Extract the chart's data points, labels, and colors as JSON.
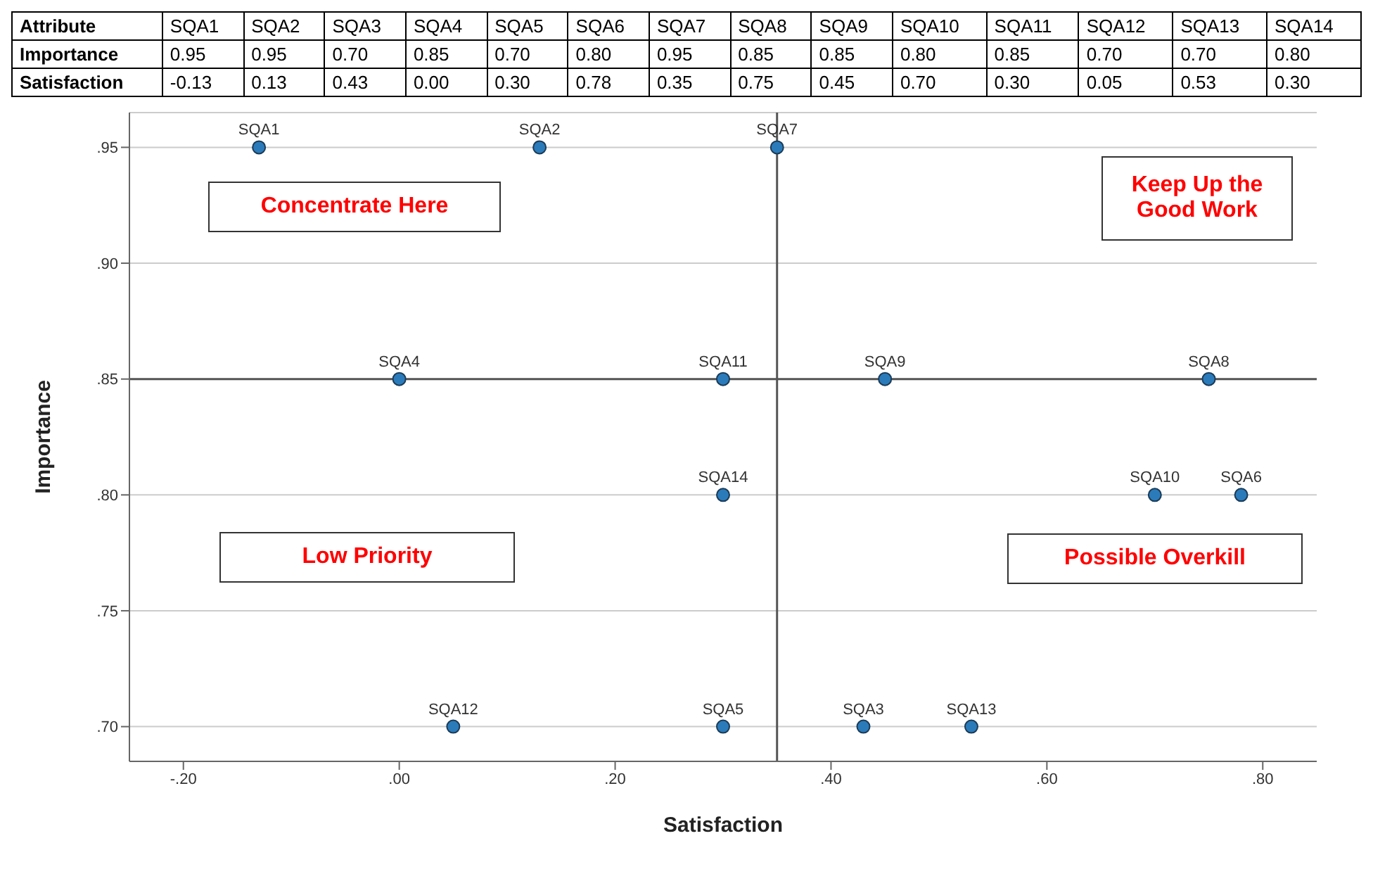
{
  "chart_data": [
    {
      "type": "heatmap",
      "ylabel": "Attribute",
      "data_labels": true,
      "categories": [
        "SQA1",
        "SQA2",
        "SQA3",
        "SQA4",
        "SQA5",
        "SQA6",
        "SQA7",
        "SQA8",
        "SQA9",
        "SQA10",
        "SQA11",
        "SQA12",
        "SQA13",
        "SQA14"
      ],
      "y_categories": [
        "Importance",
        "Satisfaction"
      ],
      "cells": [
        [
          0.95,
          0.95,
          0.7,
          0.85,
          0.7,
          0.8,
          0.95,
          0.85,
          0.85,
          0.8,
          0.85,
          0.7,
          0.7,
          0.8
        ],
        [
          -0.13,
          0.13,
          0.43,
          0.0,
          0.3,
          0.78,
          0.35,
          0.75,
          0.45,
          0.7,
          0.3,
          0.05,
          0.53,
          0.3
        ]
      ],
      "cell_labels": [
        [
          "0.95",
          "0.95",
          "0.70",
          "0.85",
          "0.70",
          "0.80",
          "0.95",
          "0.85",
          "0.85",
          "0.80",
          "0.85",
          "0.70",
          "0.70",
          "0.80"
        ],
        [
          "-0.13",
          "0.13",
          "0.43",
          "0.00",
          "0.30",
          "0.78",
          "0.35",
          "0.75",
          "0.45",
          "0.70",
          "0.30",
          "0.05",
          "0.53",
          "0.30"
        ]
      ]
    },
    {
      "type": "scatter",
      "xlabel": "Satisfaction",
      "ylabel": "Importance",
      "x": [
        -0.13,
        0.13,
        0.43,
        0.0,
        0.3,
        0.78,
        0.35,
        0.75,
        0.45,
        0.7,
        0.3,
        0.05,
        0.53,
        0.3
      ],
      "values": [
        0.95,
        0.95,
        0.7,
        0.85,
        0.7,
        0.8,
        0.95,
        0.85,
        0.85,
        0.8,
        0.85,
        0.7,
        0.7,
        0.8
      ],
      "color": "#2b7bba",
      "marker": "circle",
      "xlim": [
        -0.25,
        0.85
      ],
      "xticks": [
        {
          "value": -0.2,
          "label": "-.20"
        },
        {
          "value": 0,
          "label": ".00"
        },
        {
          "value": 0.2,
          "label": ".20"
        },
        {
          "value": 0.4,
          "label": ".40"
        },
        {
          "value": 0.6,
          "label": ".60"
        },
        {
          "value": 0.8,
          "label": ".80"
        }
      ],
      "ylim": [
        0.685,
        0.965
      ],
      "yticks": [
        {
          "value": 0.7,
          "label": ".70"
        },
        {
          "value": 0.75,
          "label": ".75"
        },
        {
          "value": 0.8,
          "label": ".80"
        },
        {
          "value": 0.85,
          "label": ".85"
        },
        {
          "value": 0.9,
          "label": ".90"
        },
        {
          "value": 0.95,
          "label": ".95"
        }
      ],
      "grid": "y",
      "ref_lines": [
        {
          "axis": "x",
          "value": 0.35,
          "color": "#555555"
        },
        {
          "axis": "y",
          "value": 0.85,
          "color": "#555555"
        }
      ],
      "annotations": [
        "Concentrate Here",
        "Keep Up the Good Work",
        "Low Priority",
        "Possible Overkill",
        {
          "text": "SQA1",
          "x": -0.13,
          "y": 0.95
        },
        {
          "text": "SQA2",
          "x": 0.13,
          "y": 0.95
        },
        {
          "text": "SQA3",
          "x": 0.43,
          "y": 0.7
        },
        {
          "text": "SQA4",
          "x": 0.0,
          "y": 0.85
        },
        {
          "text": "SQA5",
          "x": 0.3,
          "y": 0.7
        },
        {
          "text": "SQA6",
          "x": 0.78,
          "y": 0.8
        },
        {
          "text": "SQA7",
          "x": 0.35,
          "y": 0.95
        },
        {
          "text": "SQA8",
          "x": 0.75,
          "y": 0.85
        },
        {
          "text": "SQA9",
          "x": 0.45,
          "y": 0.85
        },
        {
          "text": "SQA10",
          "x": 0.7,
          "y": 0.8
        },
        {
          "text": "SQA11",
          "x": 0.3,
          "y": 0.85
        },
        {
          "text": "SQA12",
          "x": 0.05,
          "y": 0.7
        },
        {
          "text": "SQA13",
          "x": 0.53,
          "y": 0.7
        },
        {
          "text": "SQA14",
          "x": 0.3,
          "y": 0.8
        }
      ]
    }
  ]
}
